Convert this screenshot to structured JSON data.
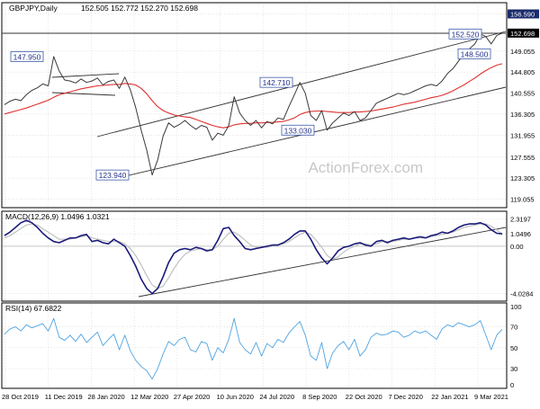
{
  "header": {
    "symbol": "GBPJPY,Daily",
    "ohlc": "152.505 152.772 152.270 152.698"
  },
  "watermark": "ActionForex.com",
  "colors": {
    "price": "#3a3a3a",
    "ma": "#e03030",
    "macd": "#1a1a7a",
    "signal": "#c0c0c0",
    "rsi": "#4fa3e0",
    "label_border": "#3d5ba8",
    "label_text": "#22308a",
    "trend": "#333333",
    "grid": "#d8d8d8",
    "current_tag": "#000000"
  },
  "chart_data": [
    {
      "type": "line",
      "panel": "price",
      "ylim": [
        117.5,
        158.5
      ],
      "y_ticks": [
        "156.590",
        "152.698",
        "149.055",
        "144.805",
        "140.555",
        "136.305",
        "131.955",
        "127.555",
        "123.305",
        "119.055"
      ],
      "y_tick_values": [
        156.59,
        152.698,
        149.055,
        144.805,
        140.555,
        136.305,
        131.955,
        127.555,
        123.305,
        119.055
      ],
      "x_labels": [
        "28 Oct 2019",
        "11 Dec 2019",
        "28 Jan 2020",
        "12 Mar 2020",
        "27 Apr 2020",
        "10 Jun 2020",
        "24 Jul 2020",
        "8 Sep 2020",
        "22 Oct 2020",
        "7 Dec 2020",
        "22 Jan 2021",
        "9 Mar 2021"
      ],
      "x_count": 12,
      "series": [
        {
          "values": [
            138.2,
            138.9,
            139.3,
            139.0,
            140.2,
            141.1,
            141.6,
            142.4,
            142.0,
            147.95,
            145.0,
            143.2,
            143.0,
            142.6,
            143.4,
            142.7,
            143.0,
            143.6,
            142.2,
            142.9,
            143.2,
            141.5,
            143.8,
            141.2,
            137.6,
            133.0,
            129.0,
            123.94,
            127.0,
            131.8,
            134.5,
            133.6,
            134.2,
            135.0,
            134.0,
            133.2,
            134.0,
            133.6,
            131.0,
            132.4,
            132.0,
            134.0,
            139.8,
            136.5,
            135.0,
            134.0,
            135.0,
            133.5,
            134.8,
            134.3,
            135.5,
            135.2,
            137.8,
            140.2,
            142.71,
            140.5,
            136.0,
            135.0,
            137.0,
            133.03,
            134.5,
            135.5,
            136.5,
            136.0,
            136.8,
            135.0,
            135.5,
            137.0,
            138.5,
            139.0,
            139.5,
            140.0,
            140.5,
            140.2,
            140.5,
            141.0,
            141.5,
            142.0,
            142.3,
            142.0,
            143.0,
            144.5,
            145.5,
            147.0,
            148.5,
            149.5,
            150.5,
            152.52,
            152.0,
            150.5,
            152.2,
            152.698
          ]
        },
        {
          "values": [
            136.3,
            136.6,
            136.9,
            137.2,
            137.5,
            137.9,
            138.3,
            138.7,
            139.1,
            139.7,
            140.2,
            140.5,
            140.8,
            141.1,
            141.4,
            141.6,
            141.8,
            142.0,
            142.1,
            142.2,
            142.3,
            142.3,
            142.5,
            142.4,
            142.2,
            141.5,
            140.4,
            139.0,
            137.8,
            137.0,
            136.5,
            136.1,
            135.9,
            135.7,
            135.6,
            135.2,
            134.8,
            134.4,
            134.0,
            133.7,
            133.5,
            133.7,
            134.1,
            134.3,
            134.4,
            134.4,
            134.5,
            134.5,
            134.6,
            134.6,
            134.7,
            134.8,
            135.1,
            135.5,
            136.2,
            136.6,
            136.8,
            136.9,
            136.9,
            136.8,
            136.7,
            136.6,
            136.6,
            136.6,
            136.7,
            136.7,
            136.8,
            136.9,
            137.1,
            137.3,
            137.5,
            137.7,
            138.0,
            138.3,
            138.5,
            138.7,
            139.0,
            139.3,
            139.6,
            139.8,
            140.1,
            140.5,
            141.0,
            141.6,
            142.2,
            142.9,
            143.6,
            144.4,
            145.1,
            145.7,
            146.2,
            146.5
          ]
        }
      ],
      "annotations": [
        {
          "text": "147.950",
          "value": 147.95
        },
        {
          "text": "123.940",
          "value": 123.94
        },
        {
          "text": "142.710",
          "value": 142.71
        },
        {
          "text": "133.030",
          "value": 133.03
        },
        {
          "text": "152.520",
          "value": 152.52
        },
        {
          "text": "148.500",
          "value": 148.5
        }
      ]
    },
    {
      "type": "line",
      "panel": "macd",
      "title": "MACD(12,26,9) 1.0496 1.0321",
      "ylim": [
        -4.6,
        2.9
      ],
      "y_ticks": [
        "2.3197",
        "1.0496",
        "0.00",
        "-4.0284"
      ],
      "y_tick_values": [
        2.3197,
        1.0496,
        0.0,
        -4.0284
      ],
      "series": [
        {
          "values": [
            0.9,
            1.2,
            1.6,
            2.0,
            2.2,
            2.0,
            1.6,
            1.1,
            0.7,
            0.4,
            0.3,
            0.5,
            0.7,
            0.7,
            0.9,
            1.0,
            0.4,
            0.5,
            0.3,
            0.2,
            0.6,
            0.3,
            0.0,
            -0.8,
            -1.7,
            -2.8,
            -3.6,
            -4.03,
            -3.6,
            -2.6,
            -1.4,
            -0.6,
            -0.3,
            -0.2,
            -0.3,
            -0.1,
            -0.2,
            -0.4,
            -0.3,
            0.5,
            1.5,
            1.6,
            0.9,
            0.4,
            -0.2,
            -0.3,
            -0.2,
            -0.1,
            0.0,
            0.1,
            0.1,
            0.3,
            0.6,
            1.0,
            1.3,
            1.3,
            0.6,
            -0.3,
            -1.0,
            -1.5,
            -1.0,
            -0.4,
            -0.1,
            0.0,
            0.2,
            0.3,
            0.1,
            0.0,
            0.4,
            0.5,
            0.3,
            0.5,
            0.6,
            0.7,
            0.6,
            0.7,
            0.8,
            0.7,
            0.9,
            1.0,
            1.2,
            1.1,
            1.3,
            1.6,
            1.8,
            1.9,
            1.9,
            2.0,
            1.8,
            1.4,
            1.1,
            1.05
          ]
        },
        {
          "values": [
            0.7,
            0.9,
            1.2,
            1.5,
            1.8,
            1.9,
            1.8,
            1.5,
            1.2,
            0.9,
            0.6,
            0.6,
            0.6,
            0.7,
            0.8,
            0.9,
            0.7,
            0.6,
            0.5,
            0.4,
            0.4,
            0.4,
            0.2,
            -0.2,
            -0.8,
            -1.6,
            -2.5,
            -3.3,
            -3.6,
            -3.4,
            -2.7,
            -1.9,
            -1.2,
            -0.7,
            -0.4,
            -0.3,
            -0.2,
            -0.3,
            -0.3,
            0.0,
            0.6,
            1.1,
            1.2,
            0.9,
            0.5,
            0.1,
            -0.1,
            -0.1,
            -0.1,
            0.0,
            0.1,
            0.2,
            0.4,
            0.7,
            1.0,
            1.2,
            1.0,
            0.5,
            -0.1,
            -0.8,
            -1.1,
            -0.9,
            -0.5,
            -0.2,
            0.0,
            0.2,
            0.2,
            0.1,
            0.2,
            0.4,
            0.4,
            0.4,
            0.5,
            0.6,
            0.6,
            0.7,
            0.7,
            0.7,
            0.8,
            0.9,
            1.0,
            1.1,
            1.2,
            1.4,
            1.6,
            1.7,
            1.8,
            1.9,
            1.9,
            1.7,
            1.4,
            1.03
          ]
        }
      ]
    },
    {
      "type": "line",
      "panel": "rsi",
      "title": "RSI(14) 67.6822",
      "ylim": [
        12,
        92
      ],
      "y_ticks": [
        "70",
        "50",
        "30"
      ],
      "y_tick_values": [
        70,
        50,
        30
      ],
      "y_extra_ticks": [
        "100",
        "0"
      ],
      "series": [
        {
          "values": [
            63,
            68,
            70,
            66,
            72,
            69,
            71,
            73,
            66,
            78,
            60,
            57,
            62,
            56,
            63,
            55,
            60,
            65,
            52,
            58,
            63,
            48,
            62,
            47,
            38,
            32,
            28,
            20,
            30,
            44,
            56,
            52,
            58,
            60,
            48,
            46,
            56,
            54,
            38,
            50,
            45,
            58,
            78,
            55,
            48,
            44,
            55,
            42,
            54,
            50,
            58,
            55,
            64,
            70,
            75,
            62,
            42,
            38,
            55,
            30,
            45,
            52,
            56,
            48,
            58,
            42,
            48,
            60,
            64,
            62,
            63,
            66,
            65,
            60,
            62,
            66,
            64,
            66,
            62,
            58,
            68,
            72,
            70,
            74,
            72,
            70,
            72,
            76,
            62,
            48,
            62,
            67.68
          ]
        }
      ]
    }
  ]
}
